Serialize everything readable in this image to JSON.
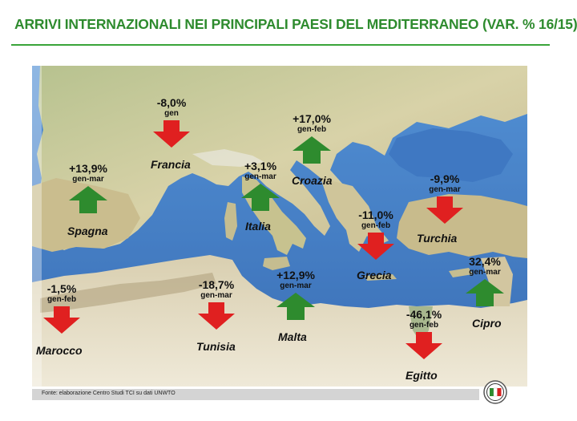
{
  "title": "ARRIVI INTERNAZIONALI NEI PRINCIPALI PAESI DEL MEDITERRANEO (VAR. % 16/15)",
  "source": "Fonte: elaborazione Centro Studi TCI su dati UNWTO",
  "colors": {
    "up": "#2e8b2e",
    "down": "#e02020",
    "title": "#2e8b2e",
    "sea": "#3b78c4",
    "land": "#c9c4a0"
  },
  "countries": [
    {
      "name": "Francia",
      "change": "-8,0%",
      "period": "gen",
      "direction": "down"
    },
    {
      "name": "Croazia",
      "change": "+17,0%",
      "period": "gen-feb",
      "direction": "up"
    },
    {
      "name": "Spagna",
      "change": "+13,9%",
      "period": "gen-mar",
      "direction": "up"
    },
    {
      "name": "Italia",
      "change": "+3,1%",
      "period": "gen-mar",
      "direction": "up"
    },
    {
      "name": "Turchia",
      "change": "-9,9%",
      "period": "gen-mar",
      "direction": "down"
    },
    {
      "name": "Grecia",
      "change": "-11,0%",
      "period": "gen-feb",
      "direction": "down"
    },
    {
      "name": "Marocco",
      "change": "-1,5%",
      "period": "gen-feb",
      "direction": "down"
    },
    {
      "name": "Tunisia",
      "change": "-18,7%",
      "period": "gen-mar",
      "direction": "down"
    },
    {
      "name": "Malta",
      "change": "+12,9%",
      "period": "gen-mar",
      "direction": "up"
    },
    {
      "name": "Cipro",
      "change": "32,4%",
      "period": "gen-mar",
      "direction": "up"
    },
    {
      "name": "Egitto",
      "change": "-46,1%",
      "period": "gen-feb",
      "direction": "down"
    }
  ]
}
